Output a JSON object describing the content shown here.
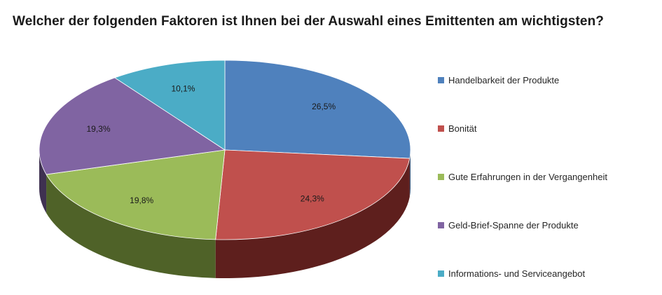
{
  "chart_data": {
    "type": "pie",
    "title": "Welcher der folgenden Faktoren ist Ihnen bei der Auswahl eines Emittenten am wichtigsten?",
    "categories": [
      "Handelbarkeit der Produkte",
      "Bonität",
      "Gute Erfahrungen in der Vergangenheit",
      "Geld-Brief-Spanne der Produkte",
      "Informations- und Serviceangebot"
    ],
    "values": [
      26.5,
      24.3,
      19.8,
      19.3,
      10.1
    ],
    "value_labels": [
      "26,5%",
      "24,3%",
      "19,8%",
      "19,3%",
      "10,1%"
    ],
    "colors": [
      "#4f81bd",
      "#c0504d",
      "#9bbb59",
      "#8064a2",
      "#4bacc6"
    ],
    "dark_colors": [
      "#2c4d75",
      "#5e1f1d",
      "#4f6228",
      "#3f3151",
      "#215967"
    ],
    "style": "3d",
    "legend_position": "right"
  }
}
